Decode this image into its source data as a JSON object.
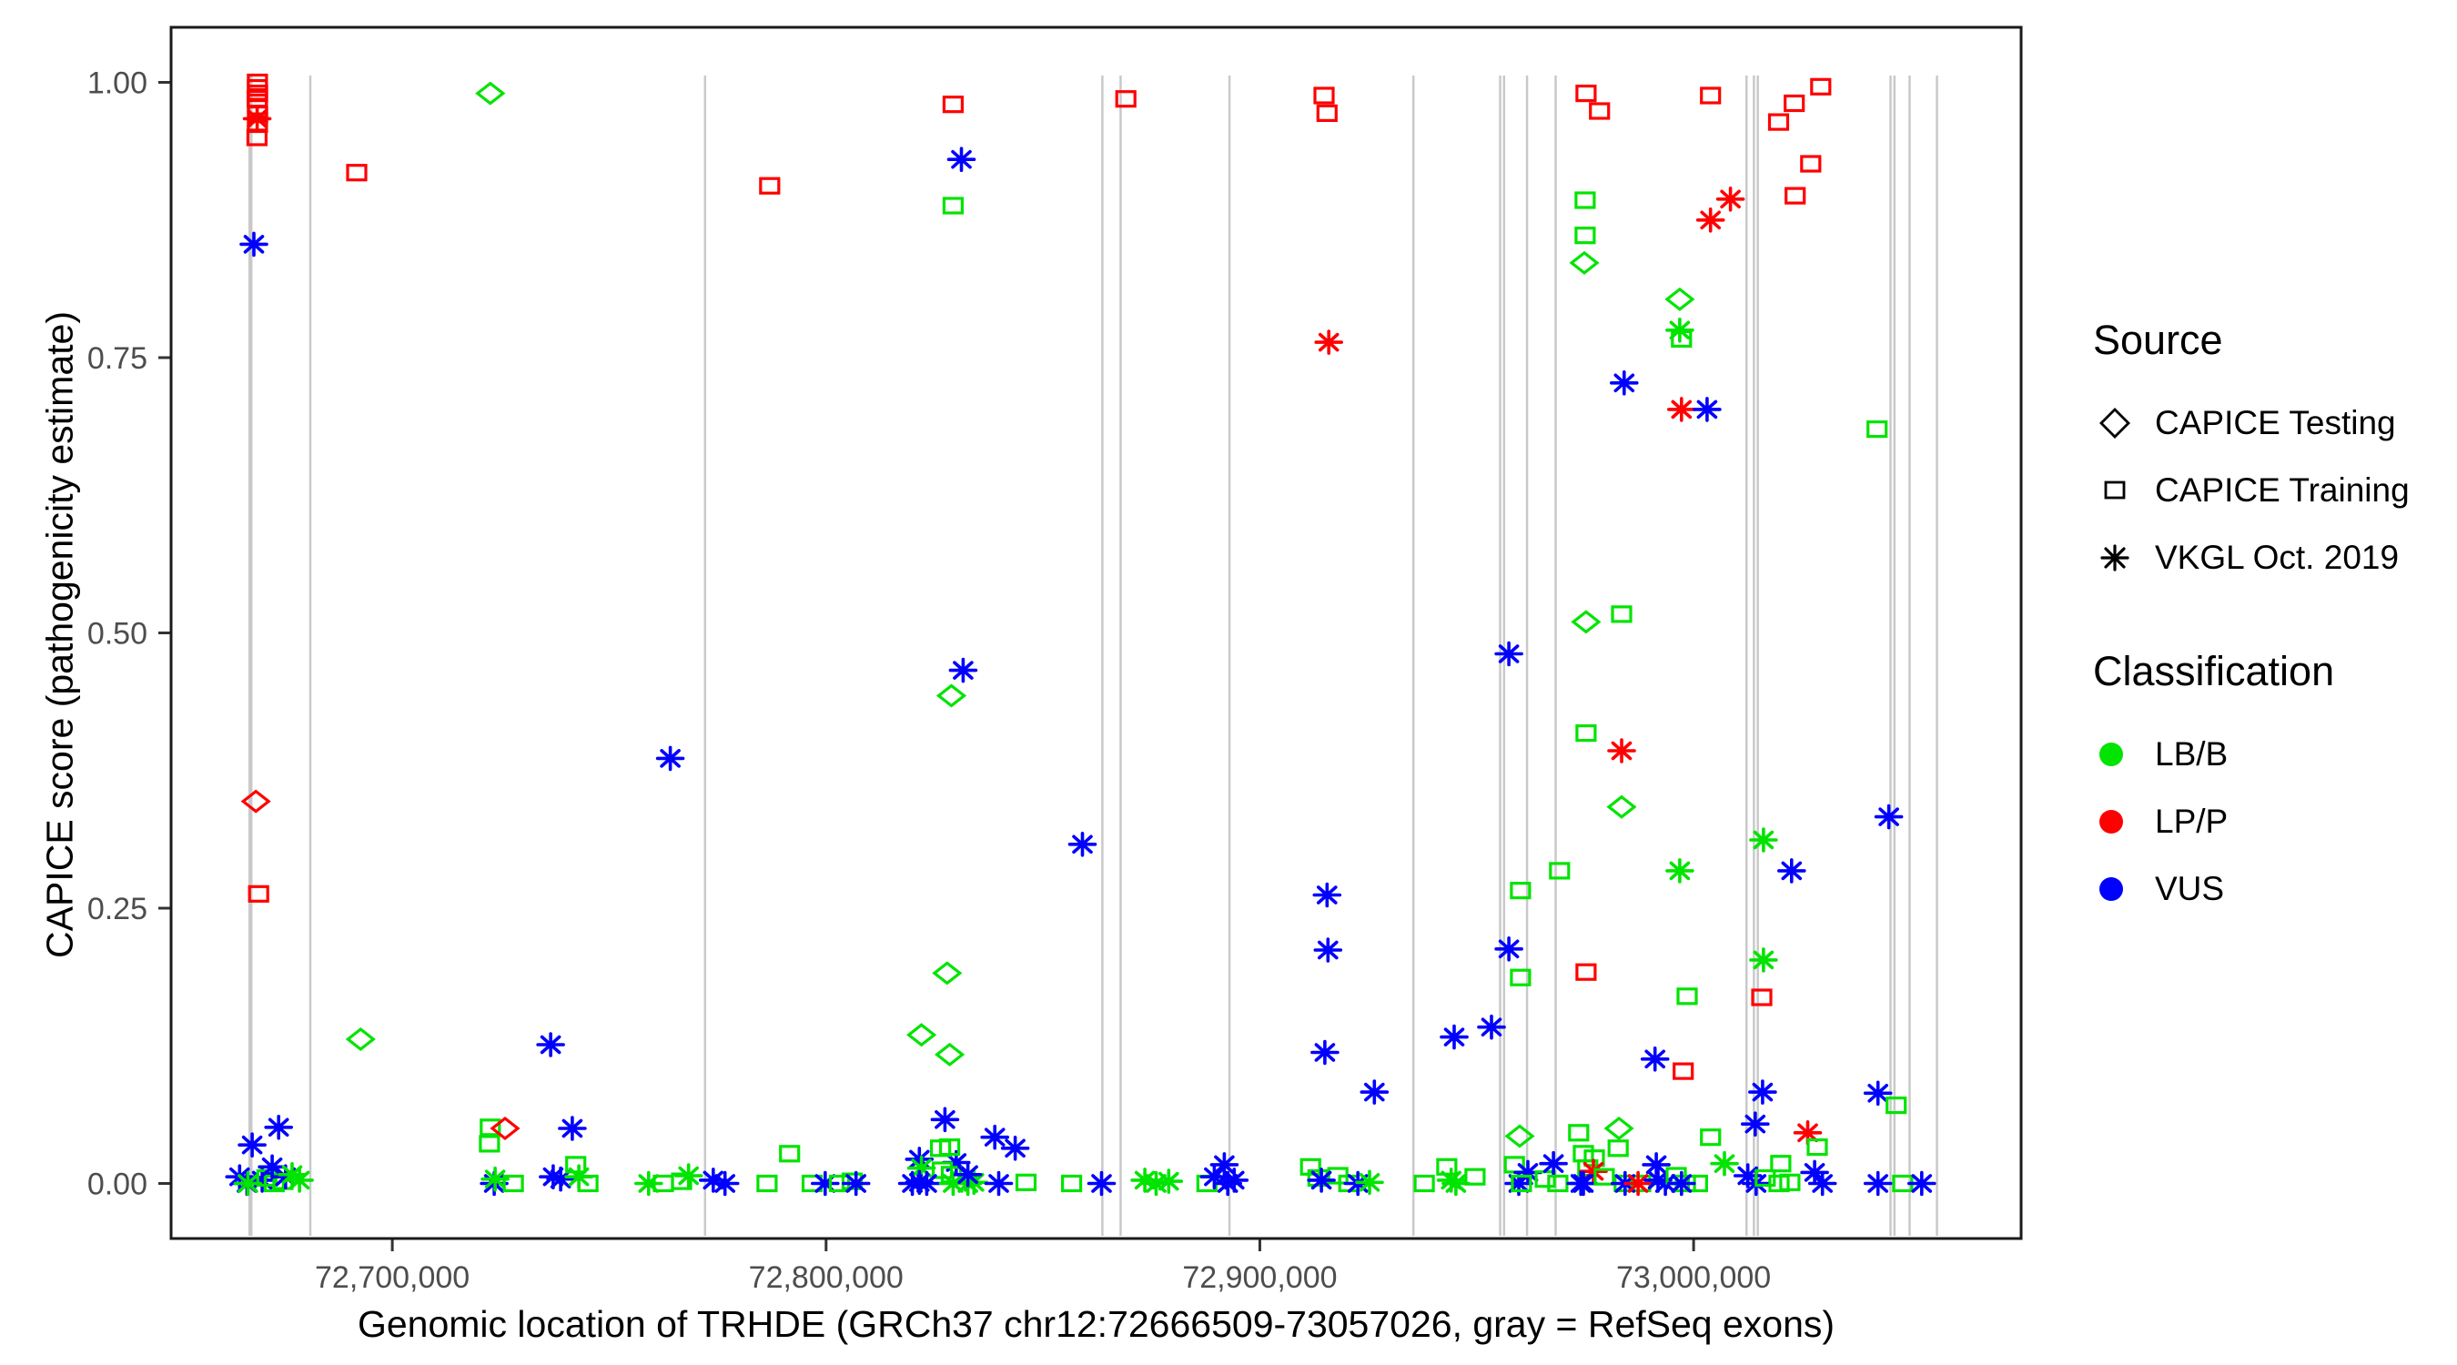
{
  "figure": {
    "xlabel": "Genomic location of TRHDE (GRCh37 chr12:72666509-73057026, gray = RefSeq exons)",
    "ylabel": "CAPICE score (pathogenicity estimate)"
  },
  "legend": {
    "source": {
      "title": "Source",
      "items": [
        {
          "label": "CAPICE Testing",
          "symbol": "diamond-outline"
        },
        {
          "label": "CAPICE Training",
          "symbol": "square-outline"
        },
        {
          "label": "VKGL Oct. 2019",
          "symbol": "asterisk"
        }
      ]
    },
    "classification": {
      "title": "Classification",
      "items": [
        {
          "label": "LB/B",
          "color": "#00E400"
        },
        {
          "label": "LP/P",
          "color": "#FF0000"
        },
        {
          "label": "VUS",
          "color": "#0000FF"
        }
      ]
    }
  },
  "chart_data": {
    "type": "scatter",
    "title": "",
    "xlabel": "Genomic location of TRHDE (GRCh37 chr12:72666509-73057026, gray = RefSeq exons)",
    "ylabel": "CAPICE score (pathogenicity estimate)",
    "xlim": [
      72649000,
      73075500
    ],
    "ylim": [
      -0.05,
      1.05
    ],
    "grid": "off",
    "legend_position": "right",
    "x_ticks": [
      {
        "value": 72700000,
        "label": "72,700,000"
      },
      {
        "value": 72800000,
        "label": "72,800,000"
      },
      {
        "value": 72900000,
        "label": "72,900,000"
      },
      {
        "value": 73000000,
        "label": "73,000,000"
      }
    ],
    "y_ticks": [
      {
        "value": 0.0,
        "label": "0.00"
      },
      {
        "value": 0.25,
        "label": "0.25"
      },
      {
        "value": 0.5,
        "label": "0.50"
      },
      {
        "value": 0.75,
        "label": "0.75"
      },
      {
        "value": 1.0,
        "label": "1.00"
      }
    ],
    "codes": {
      "point_format": "[genomic_position_bp, capice_score, source, classification]",
      "source": {
        "sq": "CAPICE Training (open square)",
        "di": "CAPICE Testing (open diamond)",
        "as": "VKGL Oct. 2019 (asterisk)"
      },
      "classification": {
        "g": "LB/B",
        "r": "LP/P",
        "b": "VUS"
      }
    },
    "colors": {
      "g": "#00E400",
      "r": "#FF0000",
      "b": "#0000FF",
      "exon": "#C9C9C9"
    },
    "exons_bp": [
      72667300,
      72681100,
      72772100,
      72863700,
      72867900,
      72893000,
      72935400,
      72955400,
      72956300,
      72961600,
      72968200,
      73012200,
      73013900,
      73014800,
      73045400,
      73046300,
      73049800,
      73056100
    ],
    "points": [
      [
        72668900,
        1.0,
        "sq",
        "r"
      ],
      [
        72668900,
        0.995,
        "sq",
        "r"
      ],
      [
        72668950,
        0.99,
        "sq",
        "r"
      ],
      [
        72668850,
        0.985,
        "sq",
        "r"
      ],
      [
        72668900,
        0.978,
        "sq",
        "r"
      ],
      [
        72668950,
        0.971,
        "sq",
        "r"
      ],
      [
        72668900,
        0.962,
        "sq",
        "r"
      ],
      [
        72668800,
        0.95,
        "sq",
        "r"
      ],
      [
        72668850,
        0.967,
        "as",
        "r"
      ],
      [
        72668100,
        0.853,
        "as",
        "b"
      ],
      [
        72668560,
        0.347,
        "di",
        "r"
      ],
      [
        72669190,
        0.263,
        "sq",
        "r"
      ],
      [
        72667700,
        0.035,
        "as",
        "b"
      ],
      [
        72664800,
        0.006,
        "as",
        "b"
      ],
      [
        72666500,
        0,
        "as",
        "b"
      ],
      [
        72670000,
        0.003,
        "as",
        "b"
      ],
      [
        72666700,
        0,
        "as",
        "g"
      ],
      [
        72671100,
        0.005,
        "sq",
        "g"
      ],
      [
        72672800,
        0,
        "sq",
        "g"
      ],
      [
        72674800,
        0.002,
        "sq",
        "g"
      ],
      [
        72673800,
        0.051,
        "as",
        "b"
      ],
      [
        72672300,
        0.015,
        "as",
        "b"
      ],
      [
        72675400,
        0.006,
        "as",
        "b"
      ],
      [
        72676900,
        0.008,
        "as",
        "g"
      ],
      [
        72678600,
        0.003,
        "as",
        "g"
      ],
      [
        72691800,
        0.918,
        "sq",
        "r"
      ],
      [
        72692700,
        0.131,
        "di",
        "g"
      ],
      [
        72722600,
        0.99,
        "di",
        "g"
      ],
      [
        72722600,
        0.051,
        "sq",
        "g"
      ],
      [
        72722400,
        0.036,
        "sq",
        "g"
      ],
      [
        72726000,
        0.05,
        "di",
        "r"
      ],
      [
        72723500,
        0,
        "as",
        "b"
      ],
      [
        72723700,
        0.004,
        "as",
        "g"
      ],
      [
        72727900,
        0,
        "sq",
        "g"
      ],
      [
        72736500,
        0.126,
        "as",
        "b"
      ],
      [
        72741500,
        0.05,
        "as",
        "b"
      ],
      [
        72737100,
        0.006,
        "as",
        "b"
      ],
      [
        72738800,
        0.004,
        "as",
        "b"
      ],
      [
        72742300,
        0.017,
        "sq",
        "g"
      ],
      [
        72743000,
        0.006,
        "as",
        "g"
      ],
      [
        72745100,
        0,
        "sq",
        "g"
      ],
      [
        72759100,
        0,
        "as",
        "g"
      ],
      [
        72762500,
        0,
        "sq",
        "g"
      ],
      [
        72766700,
        0.002,
        "sq",
        "g"
      ],
      [
        72768300,
        0.007,
        "as",
        "g"
      ],
      [
        72774000,
        0.003,
        "as",
        "b"
      ],
      [
        72776700,
        0,
        "as",
        "b"
      ],
      [
        72764100,
        0.386,
        "as",
        "b"
      ],
      [
        72787000,
        0.906,
        "sq",
        "r"
      ],
      [
        72786400,
        0,
        "sq",
        "g"
      ],
      [
        72791600,
        0.027,
        "sq",
        "g"
      ],
      [
        72796800,
        0,
        "sq",
        "g"
      ],
      [
        72799800,
        0,
        "as",
        "b"
      ],
      [
        72803100,
        0,
        "sq",
        "g"
      ],
      [
        72806000,
        0.002,
        "sq",
        "g"
      ],
      [
        72806900,
        0,
        "as",
        "b"
      ],
      [
        72829300,
        0.98,
        "sq",
        "r"
      ],
      [
        72831200,
        0.93,
        "as",
        "b"
      ],
      [
        72829300,
        0.888,
        "sq",
        "g"
      ],
      [
        72831600,
        0.466,
        "as",
        "b"
      ],
      [
        72828900,
        0.443,
        "di",
        "g"
      ],
      [
        72827900,
        0.191,
        "di",
        "g"
      ],
      [
        72822000,
        0.135,
        "di",
        "g"
      ],
      [
        72828500,
        0.117,
        "di",
        "g"
      ],
      [
        72827400,
        0.058,
        "as",
        "b"
      ],
      [
        72821500,
        0.022,
        "as",
        "b"
      ],
      [
        72822000,
        0.014,
        "as",
        "g"
      ],
      [
        72830000,
        0.019,
        "as",
        "b"
      ],
      [
        72826400,
        0.032,
        "sq",
        "g"
      ],
      [
        72828500,
        0.033,
        "sq",
        "g"
      ],
      [
        72826800,
        0.012,
        "sq",
        "g"
      ],
      [
        72828900,
        0.008,
        "sq",
        "g"
      ],
      [
        72819900,
        0,
        "as",
        "b"
      ],
      [
        72821500,
        0.001,
        "as",
        "b"
      ],
      [
        72823200,
        0,
        "as",
        "b"
      ],
      [
        72829300,
        0,
        "as",
        "g"
      ],
      [
        72832700,
        0,
        "as",
        "g"
      ],
      [
        72834100,
        0.001,
        "as",
        "g"
      ],
      [
        72832700,
        0.008,
        "as",
        "b"
      ],
      [
        72838900,
        0.042,
        "as",
        "b"
      ],
      [
        72843600,
        0.032,
        "as",
        "b"
      ],
      [
        72839800,
        0,
        "as",
        "b"
      ],
      [
        72846100,
        0.001,
        "sq",
        "g"
      ],
      [
        72856600,
        0,
        "sq",
        "g"
      ],
      [
        72863500,
        0,
        "as",
        "b"
      ],
      [
        72859100,
        0.308,
        "as",
        "b"
      ],
      [
        72869100,
        0.985,
        "sq",
        "r"
      ],
      [
        72873500,
        0.003,
        "as",
        "g"
      ],
      [
        72876100,
        0,
        "as",
        "g"
      ],
      [
        72879000,
        0.002,
        "as",
        "g"
      ],
      [
        72887800,
        0,
        "sq",
        "g"
      ],
      [
        72889500,
        0.006,
        "as",
        "b"
      ],
      [
        72891800,
        0.017,
        "as",
        "b"
      ],
      [
        72892600,
        0,
        "as",
        "b"
      ],
      [
        72894100,
        0.003,
        "as",
        "b"
      ],
      [
        72914800,
        0.988,
        "sq",
        "r"
      ],
      [
        72915500,
        0.972,
        "sq",
        "r"
      ],
      [
        72915900,
        0.764,
        "as",
        "r"
      ],
      [
        72915500,
        0.262,
        "as",
        "b"
      ],
      [
        72915700,
        0.212,
        "as",
        "b"
      ],
      [
        72915000,
        0.119,
        "as",
        "b"
      ],
      [
        72926400,
        0.083,
        "as",
        "b"
      ],
      [
        72911700,
        0.015,
        "sq",
        "g"
      ],
      [
        72913400,
        0.005,
        "sq",
        "g"
      ],
      [
        72918000,
        0.007,
        "sq",
        "g"
      ],
      [
        72920500,
        0,
        "sq",
        "g"
      ],
      [
        72914200,
        0.003,
        "as",
        "b"
      ],
      [
        72922600,
        0,
        "as",
        "b"
      ],
      [
        72925300,
        0.001,
        "as",
        "g"
      ],
      [
        72937900,
        0,
        "sq",
        "g"
      ],
      [
        72943100,
        0.015,
        "sq",
        "g"
      ],
      [
        72944100,
        0.003,
        "as",
        "g"
      ],
      [
        72945200,
        0,
        "as",
        "g"
      ],
      [
        72949600,
        0.006,
        "sq",
        "g"
      ],
      [
        72944800,
        0.133,
        "as",
        "b"
      ],
      [
        72953400,
        0.142,
        "as",
        "b"
      ],
      [
        72957400,
        0.481,
        "as",
        "b"
      ],
      [
        72957400,
        0.213,
        "as",
        "b"
      ],
      [
        72960100,
        0.266,
        "sq",
        "g"
      ],
      [
        72960100,
        0.187,
        "sq",
        "g"
      ],
      [
        72969100,
        0.284,
        "sq",
        "g"
      ],
      [
        72959900,
        0.043,
        "di",
        "g"
      ],
      [
        72958700,
        0.017,
        "sq",
        "g"
      ],
      [
        72959700,
        0,
        "as",
        "b"
      ],
      [
        72961800,
        0.01,
        "as",
        "b"
      ],
      [
        72965800,
        0.004,
        "sq",
        "g"
      ],
      [
        72967700,
        0.018,
        "as",
        "b"
      ],
      [
        72968700,
        0,
        "sq",
        "g"
      ],
      [
        72960300,
        0,
        "sq",
        "g"
      ],
      [
        72975200,
        0.99,
        "sq",
        "r"
      ],
      [
        72978300,
        0.974,
        "sq",
        "r"
      ],
      [
        72975000,
        0.893,
        "sq",
        "g"
      ],
      [
        72975000,
        0.861,
        "sq",
        "g"
      ],
      [
        72974800,
        0.836,
        "di",
        "g"
      ],
      [
        72973500,
        0.046,
        "sq",
        "g"
      ],
      [
        72974600,
        0.027,
        "sq",
        "g"
      ],
      [
        72977100,
        0.023,
        "sq",
        "g"
      ],
      [
        72975600,
        0.014,
        "sq",
        "g"
      ],
      [
        72982800,
        0.05,
        "di",
        "g"
      ],
      [
        72982600,
        0.032,
        "sq",
        "g"
      ],
      [
        72976900,
        0.011,
        "as",
        "r"
      ],
      [
        72974000,
        0,
        "as",
        "b"
      ],
      [
        72974600,
        0,
        "as",
        "b"
      ],
      [
        72979400,
        0.006,
        "sq",
        "g"
      ],
      [
        72984000,
        0,
        "sq",
        "g"
      ],
      [
        72987800,
        0,
        "sq",
        "g"
      ],
      [
        72984200,
        0,
        "as",
        "b"
      ],
      [
        72987200,
        0,
        "as",
        "r"
      ],
      [
        72991800,
        0.003,
        "as",
        "b"
      ],
      [
        72993500,
        0,
        "as",
        "b"
      ],
      [
        72991400,
        0.017,
        "as",
        "b"
      ],
      [
        72996000,
        0.007,
        "sq",
        "g"
      ],
      [
        72998100,
        0,
        "sq",
        "g"
      ],
      [
        73000900,
        0,
        "sq",
        "g"
      ],
      [
        72997200,
        0,
        "as",
        "b"
      ],
      [
        72996800,
        0.803,
        "di",
        "g"
      ],
      [
        72996800,
        0.775,
        "as",
        "g"
      ],
      [
        72997200,
        0.767,
        "sq",
        "g"
      ],
      [
        72984000,
        0.727,
        "as",
        "b"
      ],
      [
        72997200,
        0.703,
        "as",
        "r"
      ],
      [
        73003100,
        0.703,
        "as",
        "b"
      ],
      [
        72998500,
        0.17,
        "sq",
        "g"
      ],
      [
        72991100,
        0.113,
        "as",
        "b"
      ],
      [
        72997600,
        0.102,
        "sq",
        "r"
      ],
      [
        73003900,
        0.988,
        "sq",
        "r"
      ],
      [
        73008500,
        0.894,
        "as",
        "r"
      ],
      [
        73003900,
        0.875,
        "as",
        "r"
      ],
      [
        73019600,
        0.964,
        "sq",
        "r"
      ],
      [
        73023200,
        0.981,
        "sq",
        "r"
      ],
      [
        73029300,
        0.996,
        "sq",
        "r"
      ],
      [
        73027000,
        0.926,
        "sq",
        "r"
      ],
      [
        73023400,
        0.897,
        "sq",
        "r"
      ],
      [
        73042300,
        0.685,
        "sq",
        "g"
      ],
      [
        72975200,
        0.51,
        "di",
        "g"
      ],
      [
        72983400,
        0.517,
        "sq",
        "g"
      ],
      [
        72975200,
        0.409,
        "sq",
        "g"
      ],
      [
        72983400,
        0.393,
        "as",
        "r"
      ],
      [
        72983400,
        0.342,
        "di",
        "g"
      ],
      [
        73016100,
        0.312,
        "as",
        "g"
      ],
      [
        73045000,
        0.333,
        "as",
        "b"
      ],
      [
        72996800,
        0.284,
        "as",
        "g"
      ],
      [
        73022600,
        0.284,
        "as",
        "b"
      ],
      [
        73016100,
        0.203,
        "as",
        "g"
      ],
      [
        72975200,
        0.192,
        "sq",
        "r"
      ],
      [
        73015700,
        0.169,
        "sq",
        "r"
      ],
      [
        73015900,
        0.083,
        "as",
        "b"
      ],
      [
        73014200,
        0.054,
        "as",
        "b"
      ],
      [
        73003900,
        0.042,
        "sq",
        "g"
      ],
      [
        73007100,
        0.018,
        "as",
        "g"
      ],
      [
        73012500,
        0.007,
        "as",
        "b"
      ],
      [
        73014400,
        0,
        "as",
        "b"
      ],
      [
        73016500,
        0.005,
        "sq",
        "g"
      ],
      [
        73019700,
        0,
        "sq",
        "g"
      ],
      [
        73022200,
        0.001,
        "sq",
        "g"
      ],
      [
        73020100,
        0.018,
        "sq",
        "g"
      ],
      [
        73026300,
        0.046,
        "as",
        "r"
      ],
      [
        73028500,
        0.033,
        "sq",
        "g"
      ],
      [
        73027900,
        0.01,
        "as",
        "b"
      ],
      [
        73029700,
        0,
        "as",
        "b"
      ],
      [
        73042500,
        0.082,
        "as",
        "b"
      ],
      [
        73046700,
        0.071,
        "sq",
        "g"
      ],
      [
        73042500,
        0,
        "as",
        "b"
      ],
      [
        73048200,
        0,
        "sq",
        "g"
      ],
      [
        73052600,
        0,
        "as",
        "b"
      ]
    ]
  }
}
